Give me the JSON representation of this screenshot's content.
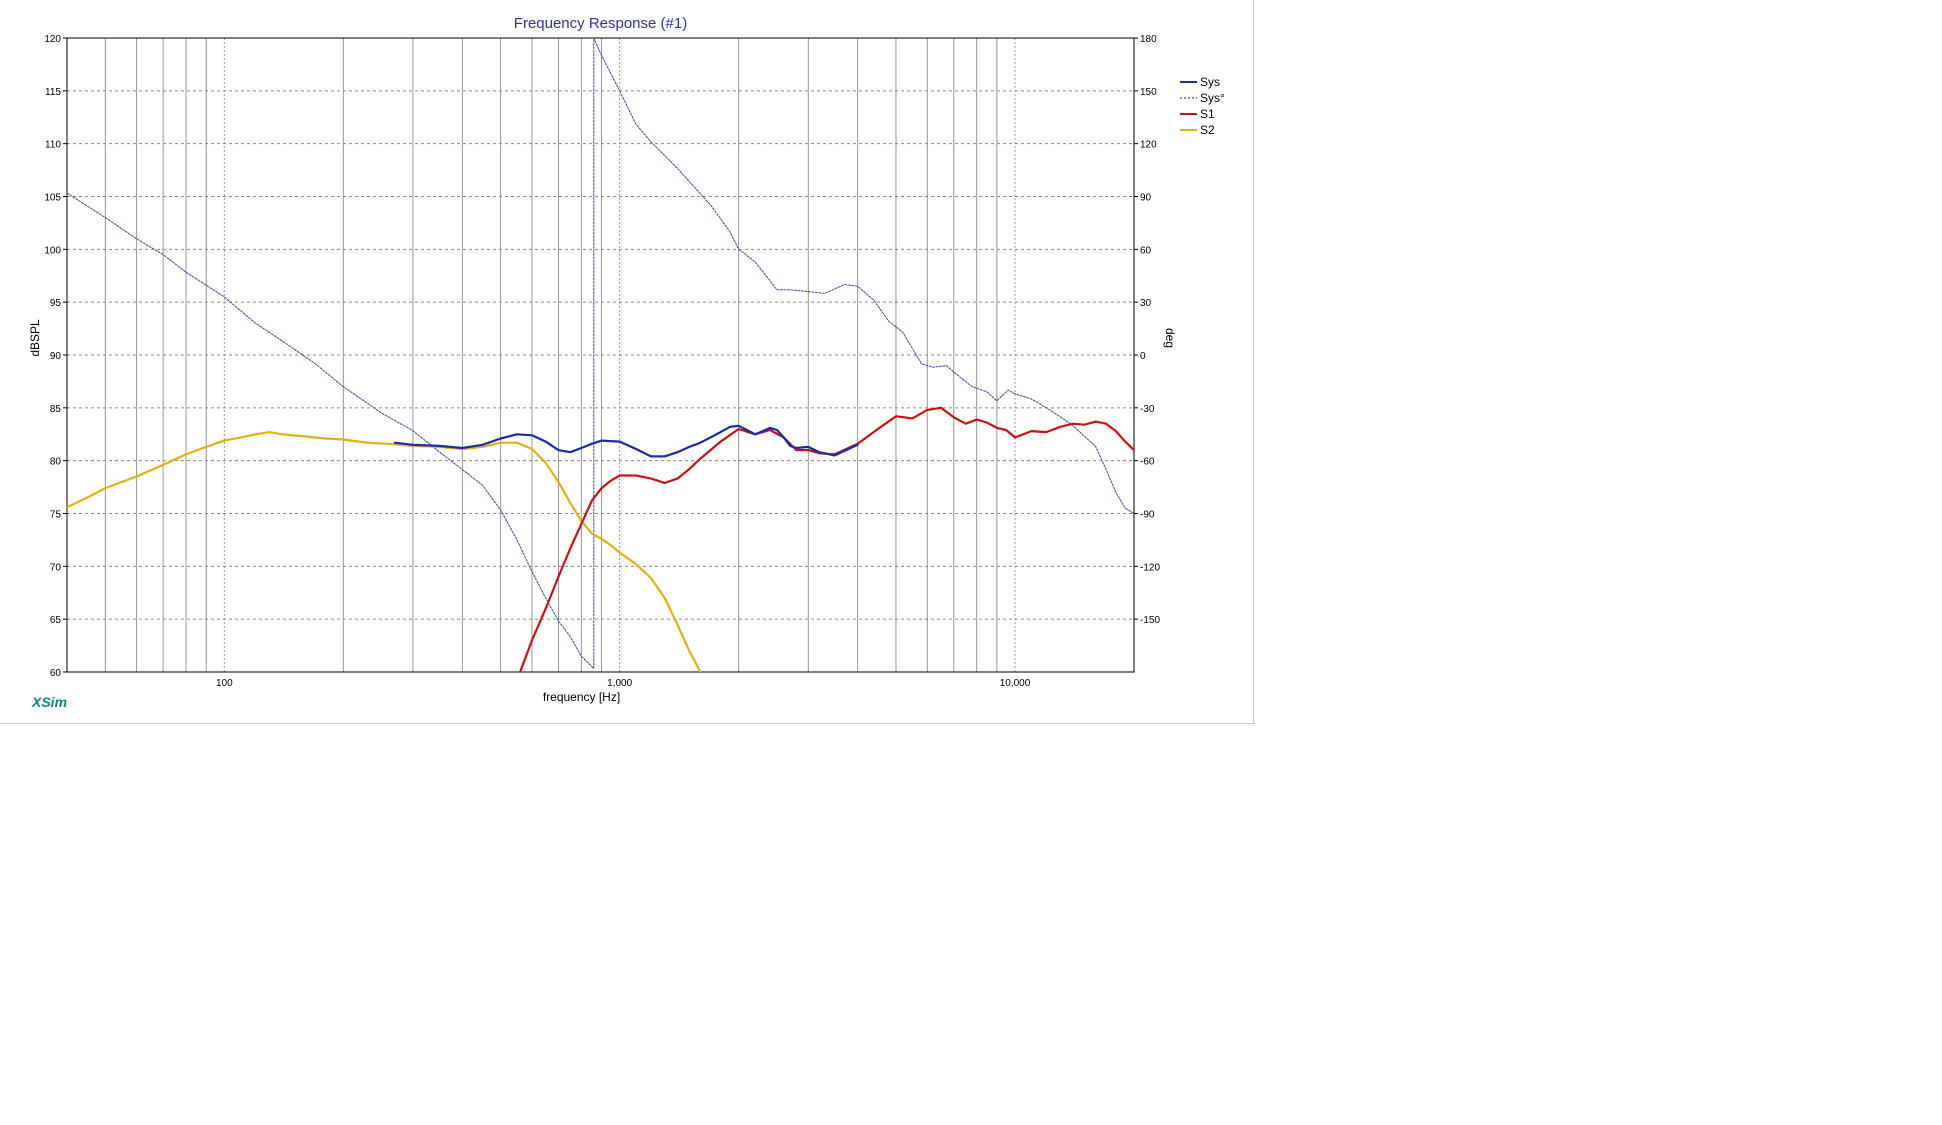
{
  "app": {
    "brand": "XSim"
  },
  "colors": {
    "title": "#2f2fb0",
    "Sys": "#1b2bb0",
    "Sys_phase": "#3848b8",
    "S1": "#d01010",
    "S2": "#e6b010",
    "grid": "#9a9a9a"
  },
  "chart_data": {
    "type": "line",
    "title": "Frequency Response (#1)",
    "xlabel": "frequency [Hz]",
    "ylabel": "dBSPL",
    "y2label": "deg",
    "xscale": "log",
    "xlim": [
      40,
      20000
    ],
    "ylim": [
      60,
      120
    ],
    "y2lim": [
      -180,
      180
    ],
    "grid": true,
    "legend_position": "top-right",
    "x_tick_labels": [
      {
        "value": 100,
        "label": "100"
      },
      {
        "value": 1000,
        "label": "1,000"
      },
      {
        "value": 10000,
        "label": "10,000"
      }
    ],
    "y_ticks": [
      60,
      65,
      70,
      75,
      80,
      85,
      90,
      95,
      100,
      105,
      110,
      115,
      120
    ],
    "y2_ticks": [
      -150,
      -120,
      -90,
      -60,
      -30,
      0,
      30,
      60,
      90,
      120,
      150,
      180
    ],
    "series": [
      {
        "name": "Sys",
        "axis": "left",
        "style": "solid",
        "color": "#1b2bb0",
        "points": [
          [
            270,
            81.7
          ],
          [
            300,
            81.5
          ],
          [
            350,
            81.4
          ],
          [
            400,
            81.2
          ],
          [
            450,
            81.5
          ],
          [
            500,
            82.1
          ],
          [
            550,
            82.5
          ],
          [
            600,
            82.4
          ],
          [
            650,
            81.8
          ],
          [
            700,
            81.0
          ],
          [
            750,
            80.8
          ],
          [
            800,
            81.2
          ],
          [
            850,
            81.6
          ],
          [
            900,
            81.9
          ],
          [
            1000,
            81.8
          ],
          [
            1100,
            81.1
          ],
          [
            1200,
            80.4
          ],
          [
            1300,
            80.4
          ],
          [
            1400,
            80.8
          ],
          [
            1500,
            81.3
          ],
          [
            1600,
            81.7
          ],
          [
            1800,
            82.7
          ],
          [
            1900,
            83.2
          ],
          [
            2000,
            83.3
          ],
          [
            2100,
            82.9
          ],
          [
            2200,
            82.5
          ],
          [
            2300,
            82.8
          ],
          [
            2400,
            83.1
          ],
          [
            2500,
            82.9
          ],
          [
            2600,
            82.2
          ],
          [
            2700,
            81.4
          ],
          [
            2800,
            81.2
          ],
          [
            3000,
            81.3
          ],
          [
            3200,
            80.8
          ],
          [
            3500,
            80.5
          ],
          [
            4000,
            81.5
          ]
        ]
      },
      {
        "name": "Sys°",
        "axis": "right",
        "style": "dashed",
        "color": "#3848b8",
        "points": [
          [
            40,
            92
          ],
          [
            50,
            78
          ],
          [
            60,
            66
          ],
          [
            70,
            57
          ],
          [
            80,
            47
          ],
          [
            100,
            33
          ],
          [
            120,
            18
          ],
          [
            140,
            8
          ],
          [
            170,
            -5
          ],
          [
            200,
            -18
          ],
          [
            250,
            -33
          ],
          [
            300,
            -43
          ],
          [
            350,
            -55
          ],
          [
            400,
            -65
          ],
          [
            450,
            -74
          ],
          [
            500,
            -88
          ],
          [
            550,
            -105
          ],
          [
            600,
            -123
          ],
          [
            650,
            -138
          ],
          [
            700,
            -151
          ],
          [
            750,
            -160
          ],
          [
            800,
            -171
          ],
          [
            860,
            -178
          ],
          [
            860,
            180
          ],
          [
            900,
            170
          ],
          [
            1000,
            150
          ],
          [
            1100,
            131
          ],
          [
            1200,
            121
          ],
          [
            1400,
            106
          ],
          [
            1700,
            85
          ],
          [
            1900,
            70
          ],
          [
            2000,
            60
          ],
          [
            2200,
            53
          ],
          [
            2500,
            37
          ],
          [
            2700,
            37
          ],
          [
            3000,
            36
          ],
          [
            3300,
            35
          ],
          [
            3700,
            40
          ],
          [
            4000,
            39
          ],
          [
            4400,
            31
          ],
          [
            4800,
            19
          ],
          [
            5200,
            13
          ],
          [
            5800,
            -5
          ],
          [
            6200,
            -7
          ],
          [
            6700,
            -6
          ],
          [
            7300,
            -13
          ],
          [
            7800,
            -18
          ],
          [
            8500,
            -21
          ],
          [
            9000,
            -26
          ],
          [
            9600,
            -20
          ],
          [
            10000,
            -22
          ],
          [
            11000,
            -25
          ],
          [
            12000,
            -30
          ],
          [
            13000,
            -35
          ],
          [
            14000,
            -40
          ],
          [
            16000,
            -52
          ],
          [
            17000,
            -65
          ],
          [
            18000,
            -78
          ],
          [
            19000,
            -87
          ],
          [
            20000,
            -90
          ]
        ]
      },
      {
        "name": "S1",
        "axis": "left",
        "style": "solid",
        "color": "#d01010",
        "points": [
          [
            560,
            60
          ],
          [
            600,
            63
          ],
          [
            650,
            66
          ],
          [
            700,
            69
          ],
          [
            750,
            71.7
          ],
          [
            800,
            74
          ],
          [
            850,
            76.2
          ],
          [
            900,
            77.4
          ],
          [
            950,
            78.1
          ],
          [
            1000,
            78.6
          ],
          [
            1100,
            78.6
          ],
          [
            1200,
            78.3
          ],
          [
            1300,
            77.9
          ],
          [
            1400,
            78.3
          ],
          [
            1500,
            79.2
          ],
          [
            1600,
            80.2
          ],
          [
            1800,
            81.8
          ],
          [
            2000,
            83.0
          ],
          [
            2200,
            82.5
          ],
          [
            2400,
            82.9
          ],
          [
            2600,
            82.2
          ],
          [
            2800,
            81.0
          ],
          [
            3000,
            81.0
          ],
          [
            3200,
            80.7
          ],
          [
            3500,
            80.6
          ],
          [
            4000,
            81.6
          ],
          [
            4500,
            83.0
          ],
          [
            5000,
            84.2
          ],
          [
            5500,
            84.0
          ],
          [
            6000,
            84.8
          ],
          [
            6500,
            85.0
          ],
          [
            7000,
            84.1
          ],
          [
            7500,
            83.5
          ],
          [
            8000,
            83.9
          ],
          [
            8500,
            83.6
          ],
          [
            9000,
            83.1
          ],
          [
            9500,
            82.9
          ],
          [
            10000,
            82.2
          ],
          [
            11000,
            82.8
          ],
          [
            12000,
            82.7
          ],
          [
            13000,
            83.2
          ],
          [
            14000,
            83.5
          ],
          [
            15000,
            83.4
          ],
          [
            16000,
            83.7
          ],
          [
            17000,
            83.5
          ],
          [
            18000,
            82.8
          ],
          [
            19000,
            81.8
          ],
          [
            20000,
            81.0
          ]
        ]
      },
      {
        "name": "S2",
        "axis": "left",
        "style": "solid",
        "color": "#e6b010",
        "points": [
          [
            40,
            75.6
          ],
          [
            45,
            76.5
          ],
          [
            50,
            77.4
          ],
          [
            60,
            78.5
          ],
          [
            70,
            79.6
          ],
          [
            80,
            80.6
          ],
          [
            90,
            81.3
          ],
          [
            100,
            81.9
          ],
          [
            110,
            82.2
          ],
          [
            120,
            82.5
          ],
          [
            130,
            82.7
          ],
          [
            140,
            82.5
          ],
          [
            160,
            82.3
          ],
          [
            180,
            82.1
          ],
          [
            200,
            82.0
          ],
          [
            230,
            81.7
          ],
          [
            260,
            81.6
          ],
          [
            300,
            81.4
          ],
          [
            350,
            81.3
          ],
          [
            400,
            81.1
          ],
          [
            450,
            81.3
          ],
          [
            500,
            81.7
          ],
          [
            550,
            81.7
          ],
          [
            600,
            81.1
          ],
          [
            650,
            79.8
          ],
          [
            700,
            78.0
          ],
          [
            750,
            76.0
          ],
          [
            800,
            74.3
          ],
          [
            850,
            73.1
          ],
          [
            900,
            72.6
          ],
          [
            950,
            72.0
          ],
          [
            1000,
            71.3
          ],
          [
            1100,
            70.2
          ],
          [
            1200,
            68.9
          ],
          [
            1300,
            67.0
          ],
          [
            1400,
            64.5
          ],
          [
            1500,
            62.0
          ],
          [
            1600,
            60.0
          ]
        ]
      }
    ]
  }
}
